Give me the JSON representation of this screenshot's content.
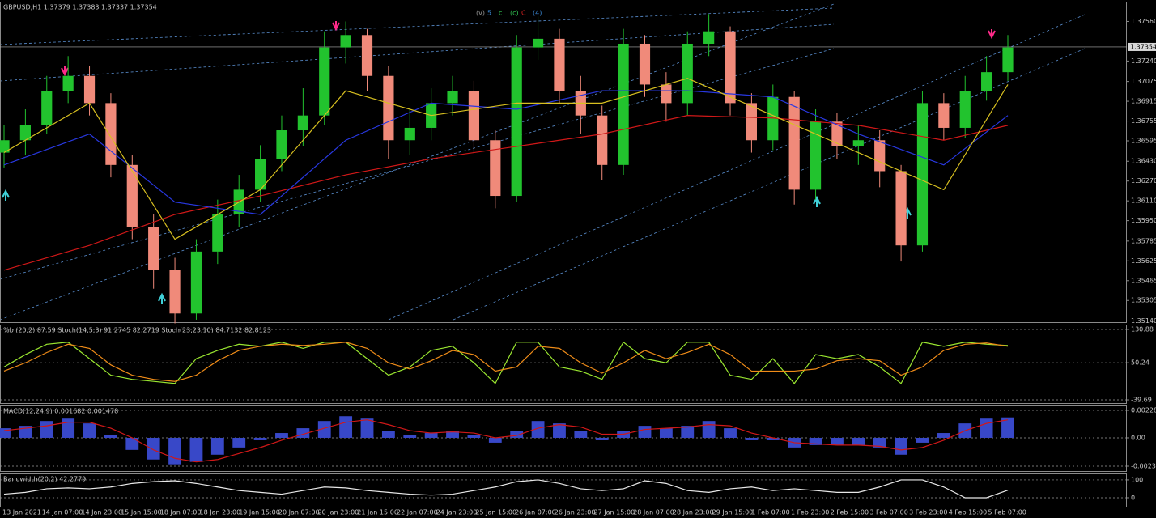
{
  "chart_data": [
    {
      "type": "candlestick",
      "title": "GBPUSD,H1 1.37379 1.37383 1.37337 1.37354",
      "up_color": "#22c32e",
      "down_color": "#f08a7a",
      "open": [
        1.365,
        1.366,
        1.3672,
        1.37,
        1.3712,
        1.369,
        1.364,
        1.359,
        1.3555,
        1.352,
        1.357,
        1.36,
        1.362,
        1.3645,
        1.3668,
        1.368,
        1.3735,
        1.3745,
        1.3712,
        1.366,
        1.367,
        1.369,
        1.37,
        1.366,
        1.3615,
        1.3735,
        1.3742,
        1.37,
        1.368,
        1.364,
        1.3738,
        1.3705,
        1.369,
        1.3738,
        1.3748,
        1.369,
        1.366,
        1.3695,
        1.362,
        1.3675,
        1.3655,
        1.366,
        1.3635,
        1.3575,
        1.369,
        1.367,
        1.37,
        1.3715
      ],
      "high": [
        1.3672,
        1.3685,
        1.3712,
        1.3728,
        1.372,
        1.3698,
        1.3648,
        1.36,
        1.3565,
        1.358,
        1.3612,
        1.3632,
        1.3656,
        1.368,
        1.3702,
        1.3748,
        1.3756,
        1.375,
        1.372,
        1.3685,
        1.3702,
        1.3712,
        1.3708,
        1.3668,
        1.3745,
        1.376,
        1.375,
        1.3712,
        1.3688,
        1.375,
        1.3745,
        1.3715,
        1.3748,
        1.3762,
        1.3752,
        1.3698,
        1.3705,
        1.37,
        1.3685,
        1.3682,
        1.3672,
        1.3668,
        1.364,
        1.37,
        1.3698,
        1.3712,
        1.3728,
        1.3745
      ],
      "low": [
        1.3638,
        1.3648,
        1.3665,
        1.369,
        1.368,
        1.363,
        1.358,
        1.354,
        1.3512,
        1.3515,
        1.356,
        1.359,
        1.361,
        1.3635,
        1.3655,
        1.3672,
        1.3722,
        1.37,
        1.3645,
        1.3648,
        1.366,
        1.368,
        1.365,
        1.3605,
        1.361,
        1.3725,
        1.369,
        1.3665,
        1.3628,
        1.3632,
        1.3695,
        1.3675,
        1.368,
        1.3728,
        1.368,
        1.365,
        1.3652,
        1.3608,
        1.3612,
        1.3645,
        1.364,
        1.3622,
        1.3562,
        1.357,
        1.366,
        1.3662,
        1.3692,
        1.3708
      ],
      "close": [
        1.366,
        1.3672,
        1.37,
        1.3712,
        1.369,
        1.364,
        1.359,
        1.3555,
        1.352,
        1.357,
        1.36,
        1.362,
        1.3645,
        1.3668,
        1.368,
        1.3735,
        1.3745,
        1.3712,
        1.366,
        1.367,
        1.369,
        1.37,
        1.366,
        1.3615,
        1.3735,
        1.3742,
        1.37,
        1.368,
        1.364,
        1.3738,
        1.3705,
        1.369,
        1.3738,
        1.3748,
        1.369,
        1.366,
        1.3695,
        1.362,
        1.3675,
        1.3655,
        1.366,
        1.3635,
        1.3575,
        1.369,
        1.367,
        1.37,
        1.3715,
        1.3735
      ],
      "series": [
        {
          "color": "#d01818",
          "x": [
            0,
            4,
            8,
            12,
            16,
            20,
            24,
            28,
            32,
            36,
            40,
            44,
            47
          ],
          "values": [
            1.3555,
            1.3575,
            1.36,
            1.3615,
            1.3632,
            1.3645,
            1.3655,
            1.3665,
            1.368,
            1.3678,
            1.3672,
            1.366,
            1.3672
          ]
        },
        {
          "color": "#2838e0",
          "x": [
            0,
            4,
            8,
            12,
            16,
            20,
            24,
            28,
            32,
            36,
            40,
            44,
            47
          ],
          "values": [
            1.364,
            1.3665,
            1.361,
            1.36,
            1.366,
            1.369,
            1.3685,
            1.37,
            1.37,
            1.3695,
            1.3665,
            1.364,
            1.368
          ]
        },
        {
          "color": "#d8c020",
          "x": [
            0,
            4,
            8,
            12,
            16,
            20,
            24,
            28,
            32,
            36,
            40,
            44,
            47
          ],
          "values": [
            1.365,
            1.369,
            1.358,
            1.362,
            1.37,
            1.368,
            1.369,
            1.369,
            1.371,
            1.368,
            1.365,
            1.362,
            1.3705
          ]
        }
      ],
      "last_price": {
        "value": 1.37354,
        "label": "1.37354"
      },
      "wave_labels": [
        {
          "text": "(v)",
          "color": "#9a9a9a"
        },
        {
          "text": "5",
          "color": "#3a8ad8"
        },
        {
          "text": "c",
          "color": "#30c050"
        },
        {
          "text": "(c)",
          "color": "#30c050"
        },
        {
          "text": "C",
          "color": "#d02020"
        },
        {
          "text": "(4)",
          "color": "#3a8ad8"
        }
      ],
      "ylim": [
        1.3513,
        1.3772
      ],
      "yticks": [
        {
          "value": 1.3756,
          "label": "1.37560"
        },
        {
          "value": 1.3724,
          "label": "1.37240"
        },
        {
          "value": 1.37075,
          "label": "1.37075"
        },
        {
          "value": 1.36915,
          "label": "1.36915"
        },
        {
          "value": 1.36755,
          "label": "1.36755"
        },
        {
          "value": 1.36595,
          "label": "1.36595"
        },
        {
          "value": 1.3643,
          "label": "1.36430"
        },
        {
          "value": 1.3627,
          "label": "1.36270"
        },
        {
          "value": 1.3611,
          "label": "1.36110"
        },
        {
          "value": 1.3595,
          "label": "1.35950"
        },
        {
          "value": 1.35785,
          "label": "1.35785"
        },
        {
          "value": 1.35625,
          "label": "1.35625"
        },
        {
          "value": 1.35465,
          "label": "1.35465"
        },
        {
          "value": 1.35305,
          "label": "1.35305"
        },
        {
          "value": 1.3514,
          "label": "1.35140"
        }
      ]
    },
    {
      "type": "line",
      "title": "%b (20,2) 87.59  Stoch(14,5,3) 91.2745 82.2719  Stoch(23,23,10) 84.7132 82.8123",
      "series": [
        {
          "color": "#9ae630",
          "values": [
            40,
            70,
            95,
            100,
            60,
            20,
            10,
            5,
            0,
            60,
            80,
            95,
            90,
            100,
            85,
            100,
            100,
            60,
            20,
            40,
            80,
            90,
            50,
            0,
            100,
            100,
            40,
            30,
            10,
            100,
            60,
            50,
            100,
            100,
            20,
            10,
            60,
            0,
            70,
            60,
            70,
            40,
            0,
            100,
            90,
            100,
            95,
            92
          ]
        },
        {
          "color": "#f08c18",
          "values": [
            30,
            50,
            75,
            95,
            85,
            45,
            20,
            10,
            5,
            20,
            55,
            80,
            90,
            95,
            92,
            95,
            100,
            85,
            50,
            35,
            55,
            80,
            70,
            30,
            40,
            90,
            85,
            50,
            25,
            50,
            80,
            60,
            75,
            95,
            70,
            30,
            30,
            30,
            35,
            55,
            60,
            55,
            20,
            40,
            80,
            95,
            98,
            90
          ]
        }
      ],
      "ylim": [
        -47.5,
        142.6
      ],
      "yticks": [
        130.88,
        50.24,
        -39.69
      ]
    },
    {
      "type": "bar",
      "title": "MACD(12,24,9) 0.001682 0.001478",
      "color": "#3848c8",
      "values": [
        0.0008,
        0.001,
        0.0014,
        0.0016,
        0.0012,
        0.0002,
        -0.001,
        -0.0018,
        -0.0022,
        -0.002,
        -0.0014,
        -0.0008,
        -0.0002,
        0.0004,
        0.0008,
        0.0014,
        0.0018,
        0.0016,
        0.0006,
        0.0002,
        0.0004,
        0.0006,
        0.0002,
        -0.0004,
        0.0006,
        0.0014,
        0.0012,
        0.0006,
        -0.0002,
        0.0006,
        0.001,
        0.0008,
        0.001,
        0.0014,
        0.0008,
        -0.0002,
        -0.0002,
        -0.0008,
        -0.0006,
        -0.0006,
        -0.0006,
        -0.0008,
        -0.0014,
        -0.0004,
        0.0004,
        0.0012,
        0.0016,
        0.0017
      ],
      "series": [
        {
          "color": "#d01818",
          "values": [
            0.0006,
            0.0008,
            0.001,
            0.0013,
            0.0013,
            0.0008,
            0.0,
            -0.001,
            -0.0017,
            -0.002,
            -0.0018,
            -0.0013,
            -0.0008,
            -0.0002,
            0.0003,
            0.0008,
            0.0013,
            0.0015,
            0.0011,
            0.0006,
            0.0004,
            0.0005,
            0.0004,
            0.0,
            0.0002,
            0.0008,
            0.0011,
            0.0009,
            0.0003,
            0.0003,
            0.0007,
            0.0008,
            0.0009,
            0.0011,
            0.001,
            0.0004,
            0.0,
            -0.0004,
            -0.0005,
            -0.0006,
            -0.0006,
            -0.0007,
            -0.001,
            -0.0008,
            -0.0002,
            0.0006,
            0.0012,
            0.0015
          ]
        }
      ],
      "ylim": [
        -0.00276,
        0.00269
      ],
      "yticks": [
        0.002287,
        {
          "value": 0,
          "label": "0.00"
        },
        -0.002356
      ]
    },
    {
      "type": "line",
      "title": "Bandwidth(20,2) 42.2779",
      "series": [
        {
          "color": "#e8e8e8",
          "values": [
            20,
            30,
            50,
            55,
            50,
            60,
            80,
            90,
            95,
            80,
            60,
            40,
            30,
            20,
            40,
            60,
            55,
            40,
            30,
            20,
            15,
            20,
            40,
            60,
            90,
            100,
            80,
            50,
            40,
            50,
            95,
            80,
            40,
            30,
            50,
            60,
            40,
            50,
            40,
            30,
            30,
            60,
            100,
            100,
            60,
            0,
            0,
            42
          ]
        }
      ],
      "ylim": [
        -50,
        136
      ],
      "yticks": [
        100,
        0
      ]
    }
  ],
  "x_labels": [
    "13 Jan 2021",
    "14 Jan 07:00",
    "14 Jan 23:00",
    "15 Jan 15:00",
    "18 Jan 07:00",
    "18 Jan 23:00",
    "19 Jan 15:00",
    "20 Jan 07:00",
    "20 Jan 23:00",
    "21 Jan 15:00",
    "22 Jan 07:00",
    "24 Jan 23:00",
    "25 Jan 15:00",
    "26 Jan 07:00",
    "26 Jan 23:00",
    "27 Jan 15:00",
    "28 Jan 07:00",
    "28 Jan 23:00",
    "29 Jan 15:00",
    "1 Feb 07:00",
    "1 Feb 23:00",
    "2 Feb 15:00",
    "3 Feb 07:00",
    "3 Feb 23:00",
    "4 Feb 15:00",
    "5 Feb 07:00"
  ]
}
